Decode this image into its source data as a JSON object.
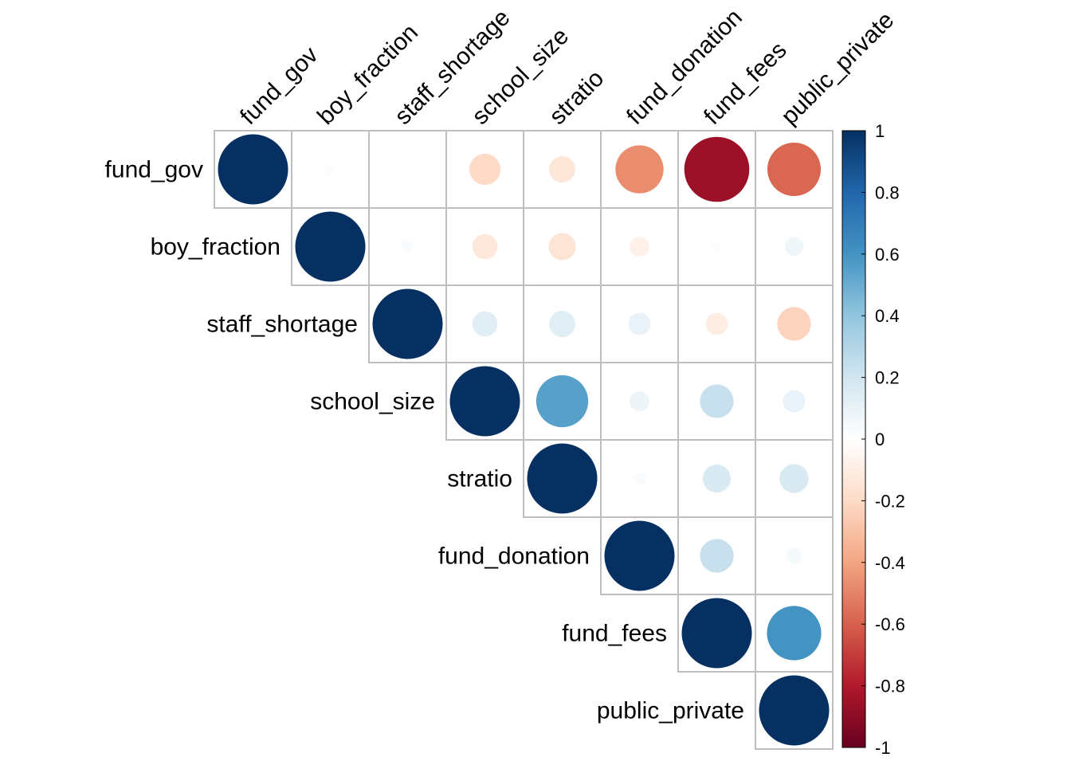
{
  "chart_data": {
    "type": "heatmap",
    "variables": [
      "fund_gov",
      "boy_fraction",
      "staff_shortage",
      "school_size",
      "stratio",
      "fund_donation",
      "fund_fees",
      "public_private"
    ],
    "matrix": [
      [
        1,
        0.02,
        0.0,
        -0.2,
        -0.14,
        -0.47,
        -0.86,
        -0.58
      ],
      [
        null,
        1,
        0.03,
        -0.13,
        -0.15,
        -0.08,
        0.02,
        0.07
      ],
      [
        null,
        null,
        1,
        0.13,
        0.14,
        0.1,
        -0.1,
        -0.23
      ],
      [
        null,
        null,
        null,
        1,
        0.55,
        0.08,
        0.23,
        0.1
      ],
      [
        null,
        null,
        null,
        null,
        1,
        0.03,
        0.16,
        0.17
      ],
      [
        null,
        null,
        null,
        null,
        null,
        1,
        0.23,
        0.05
      ],
      [
        null,
        null,
        null,
        null,
        null,
        null,
        1,
        0.6
      ],
      [
        null,
        null,
        null,
        null,
        null,
        null,
        null,
        1
      ]
    ],
    "colorbar": {
      "min": -1,
      "max": 1,
      "ticks": [
        "1",
        "0.8",
        "0.6",
        "0.4",
        "0.2",
        "0",
        "-0.2",
        "-0.4",
        "-0.6",
        "-0.8",
        "-1"
      ]
    }
  }
}
